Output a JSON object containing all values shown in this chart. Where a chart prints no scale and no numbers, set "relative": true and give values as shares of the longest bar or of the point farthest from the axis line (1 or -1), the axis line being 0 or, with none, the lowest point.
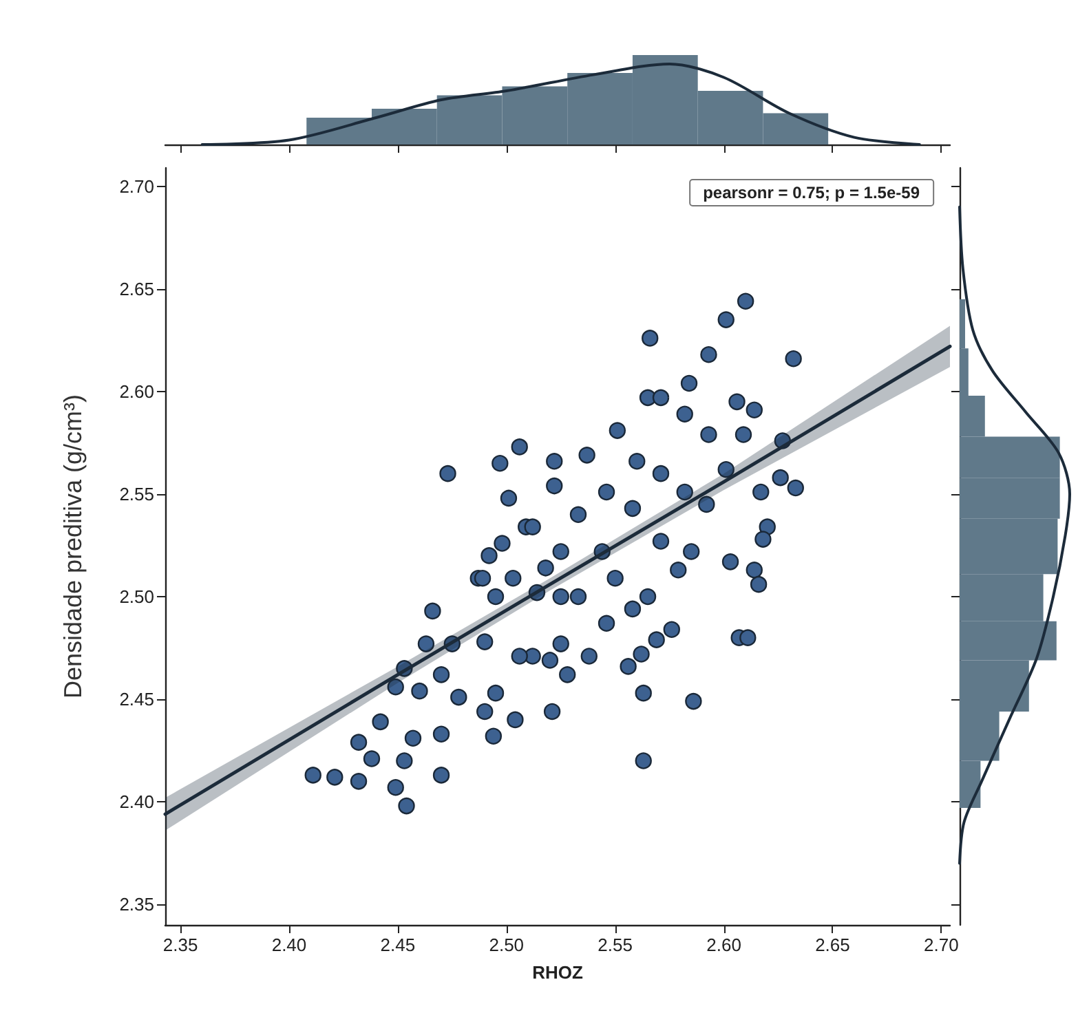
{
  "chart_data": [
    {
      "type": "histogram",
      "relative": true,
      "xlim": [
        2.343,
        2.704
      ],
      "xticks": [
        2.35,
        2.4,
        2.45,
        2.5,
        2.55,
        2.6,
        2.65,
        2.7
      ],
      "tick_labels": false,
      "bins": [
        2.408,
        2.438,
        2.468,
        2.498,
        2.528,
        2.558,
        2.588,
        2.618,
        2.648
      ],
      "series": [
        {
          "type": "histogram",
          "color": "#60798a",
          "values": [
            0.3,
            0.4,
            0.55,
            0.65,
            0.8,
            1.0,
            0.6,
            0.35
          ]
        },
        {
          "type": "line",
          "color": "#1c2b3a",
          "x": [
            2.36,
            2.4,
            2.44,
            2.47,
            2.5,
            2.54,
            2.575,
            2.6,
            2.63,
            2.66,
            2.69
          ],
          "values": [
            0.0,
            0.05,
            0.3,
            0.5,
            0.6,
            0.78,
            0.9,
            0.75,
            0.35,
            0.08,
            0.0
          ]
        }
      ]
    },
    {
      "type": "scatter",
      "xlabel": "RHOZ",
      "ylabel": "Densidade preditiva (g/cm³)",
      "annotations": [
        "pearsonr = 0.75; p = 1.5e-59"
      ],
      "xlim": [
        2.343,
        2.704
      ],
      "ylim": [
        2.34,
        2.709
      ],
      "xticks": [
        2.35,
        {
          "value": 2.4,
          "label": "2.40"
        },
        2.45,
        {
          "value": 2.5,
          "label": "2.50"
        },
        2.55,
        {
          "value": 2.6,
          "label": "2.60"
        },
        2.65,
        {
          "value": 2.7,
          "label": "2.70"
        }
      ],
      "yticks": [
        2.35,
        {
          "value": 2.4,
          "label": "2.40"
        },
        2.45,
        {
          "value": 2.5,
          "label": "2.50"
        },
        2.55,
        {
          "value": 2.6,
          "label": "2.60"
        },
        2.65,
        {
          "value": 2.7,
          "label": "2.70"
        }
      ],
      "series": [
        {
          "type": "scatter",
          "marker": "circle",
          "color": "#3d6190",
          "x": [
            2.473,
            2.506,
            2.497,
            2.501,
            2.509,
            2.498,
            2.492,
            2.503,
            2.487,
            2.466,
            2.475,
            2.463,
            2.453,
            2.61,
            2.601,
            2.566,
            2.593,
            2.632,
            2.584,
            2.565,
            2.571,
            2.606,
            2.614,
            2.582,
            2.551,
            2.593,
            2.609,
            2.627,
            2.522,
            2.537,
            2.56,
            2.522,
            2.546,
            2.571,
            2.601,
            2.633,
            2.626,
            2.617,
            2.582,
            2.533,
            2.558,
            2.592,
            2.62,
            2.618,
            2.512,
            2.525,
            2.518,
            2.544,
            2.571,
            2.585,
            2.579,
            2.603,
            2.614,
            2.616,
            2.565,
            2.55,
            2.533,
            2.514,
            2.546,
            2.558,
            2.576,
            2.569,
            2.562,
            2.556,
            2.538,
            2.607,
            2.611,
            2.525,
            2.512,
            2.521,
            2.563,
            2.586,
            2.563,
            2.449,
            2.46,
            2.47,
            2.442,
            2.432,
            2.438,
            2.411,
            2.421,
            2.432,
            2.449,
            2.454,
            2.47,
            2.453,
            2.457,
            2.47,
            2.478,
            2.49,
            2.494,
            2.504,
            2.495,
            2.49,
            2.506,
            2.52,
            2.528,
            2.489,
            2.495,
            2.525
          ],
          "values": [
            2.56,
            2.573,
            2.565,
            2.548,
            2.534,
            2.526,
            2.52,
            2.509,
            2.509,
            2.493,
            2.477,
            2.477,
            2.465,
            2.644,
            2.635,
            2.626,
            2.618,
            2.616,
            2.604,
            2.597,
            2.597,
            2.595,
            2.591,
            2.589,
            2.581,
            2.579,
            2.579,
            2.576,
            2.566,
            2.569,
            2.566,
            2.554,
            2.551,
            2.56,
            2.562,
            2.553,
            2.558,
            2.551,
            2.551,
            2.54,
            2.543,
            2.545,
            2.534,
            2.528,
            2.534,
            2.522,
            2.514,
            2.522,
            2.527,
            2.522,
            2.513,
            2.517,
            2.513,
            2.506,
            2.5,
            2.509,
            2.5,
            2.502,
            2.487,
            2.494,
            2.484,
            2.479,
            2.472,
            2.466,
            2.471,
            2.48,
            2.48,
            2.477,
            2.471,
            2.444,
            2.453,
            2.449,
            2.42,
            2.456,
            2.454,
            2.462,
            2.439,
            2.429,
            2.421,
            2.413,
            2.412,
            2.41,
            2.407,
            2.398,
            2.413,
            2.42,
            2.431,
            2.433,
            2.451,
            2.444,
            2.432,
            2.44,
            2.453,
            2.478,
            2.471,
            2.469,
            2.462,
            2.509,
            2.5,
            2.5
          ]
        },
        {
          "type": "line",
          "marker": "none",
          "color": "#1c2b3a",
          "x": [
            2.343,
            2.45,
            2.52,
            2.6,
            2.704
          ],
          "values": [
            2.394,
            2.462,
            2.506,
            2.556,
            2.622
          ],
          "lower": [
            2.386,
            2.458,
            2.503,
            2.552,
            2.612
          ],
          "upper": [
            2.402,
            2.466,
            2.509,
            2.56,
            2.632
          ]
        }
      ]
    },
    {
      "type": "histogram",
      "relative": true,
      "orientation": "horizontal",
      "ylim": [
        2.34,
        2.709
      ],
      "yticks": [
        2.35,
        2.4,
        2.45,
        2.5,
        2.55,
        2.6,
        2.65,
        2.7
      ],
      "tick_labels": false,
      "bins": [
        2.397,
        2.42,
        2.444,
        2.469,
        2.488,
        2.511,
        2.538,
        2.558,
        2.578,
        2.598,
        2.621,
        2.645
      ],
      "series": [
        {
          "type": "histogram",
          "color": "#60798a",
          "values": [
            0.19,
            0.36,
            0.63,
            0.88,
            0.76,
            0.89,
            0.91,
            0.91,
            0.23,
            0.08,
            0.05
          ]
        },
        {
          "type": "line",
          "color": "#1c2b3a",
          "x": [
            2.37,
            2.39,
            2.41,
            2.44,
            2.47,
            2.5,
            2.53,
            2.55,
            2.57,
            2.59,
            2.61,
            2.63,
            2.66,
            2.69
          ],
          "values": [
            0.0,
            0.04,
            0.2,
            0.45,
            0.7,
            0.85,
            0.96,
            1.0,
            0.9,
            0.6,
            0.3,
            0.12,
            0.03,
            0.0
          ]
        }
      ]
    }
  ]
}
